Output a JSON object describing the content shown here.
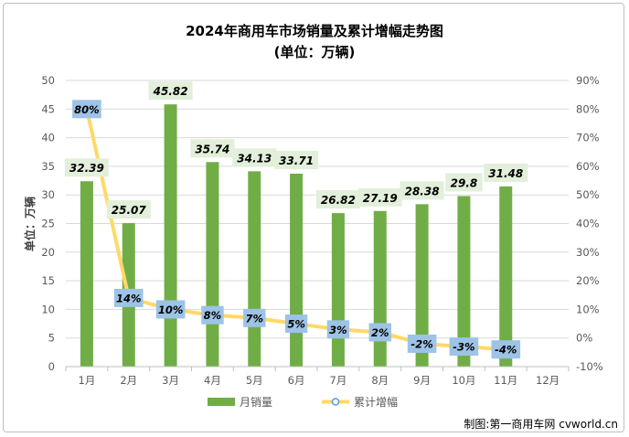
{
  "chart_data": {
    "type": "bar",
    "title": "2024年商用车市场销量及累计增幅走势图",
    "subtitle": "(单位：万辆)",
    "ylabel": "单位：万辆",
    "xlabel": "",
    "categories": [
      "1月",
      "2月",
      "3月",
      "4月",
      "5月",
      "6月",
      "7月",
      "8月",
      "9月",
      "10月",
      "11月",
      "12月"
    ],
    "series": [
      {
        "name": "月销量",
        "kind": "bar",
        "axis": "left",
        "values": [
          32.39,
          25.07,
          45.82,
          35.74,
          34.13,
          33.71,
          26.82,
          27.19,
          28.38,
          29.8,
          31.48,
          null
        ],
        "labels": [
          "32.39",
          "25.07",
          "45.82",
          "35.74",
          "34.13",
          "33.71",
          "26.82",
          "27.19",
          "28.38",
          "29.8",
          "31.48",
          ""
        ],
        "color": "#70ad47"
      },
      {
        "name": "累计增幅",
        "kind": "line",
        "axis": "right",
        "values": [
          80,
          14,
          10,
          8,
          7,
          5,
          3,
          2,
          -2,
          -3,
          -4,
          null
        ],
        "labels": [
          "80%",
          "14%",
          "10%",
          "8%",
          "7%",
          "5%",
          "3%",
          "2%",
          "-2%",
          "-3%",
          "-4%",
          ""
        ],
        "color": "#ffd966"
      }
    ],
    "ylim_left": [
      0,
      50
    ],
    "yticks_left": [
      "0",
      "5",
      "10",
      "15",
      "20",
      "25",
      "30",
      "35",
      "40",
      "45",
      "50"
    ],
    "ylim_right": [
      -10,
      90
    ],
    "yticks_right": [
      "-10%",
      "0%",
      "10%",
      "20%",
      "30%",
      "40%",
      "50%",
      "60%",
      "70%",
      "80%",
      "90%"
    ],
    "grid": "horizontal",
    "legend": "bottom-center",
    "source_note": "制图:第一商用车网 cvworld.cn",
    "colors": {
      "bar": "#70ad47",
      "line": "#ffd966",
      "line_marker_border": "#5b9bd5",
      "pct_label_bg": "#9dc3e6",
      "bar_label_bg": "#e2efda",
      "grid": "#d9d9d9",
      "axis_text": "#595959"
    }
  }
}
